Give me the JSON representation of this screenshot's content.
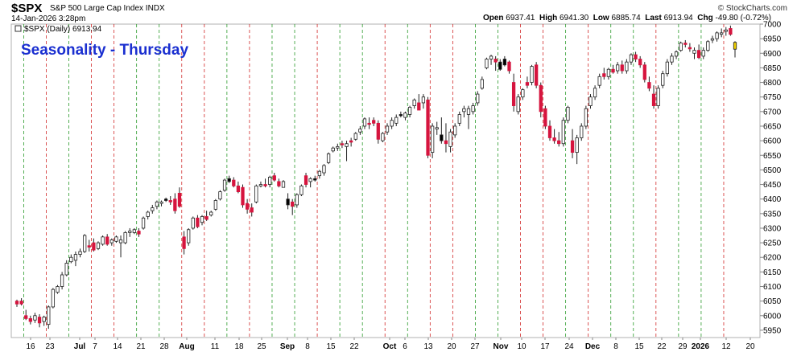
{
  "header": {
    "symbol": "$SPX",
    "name": "S&P 500 Large Cap Index  INDX",
    "date": "14-Jan-2026 3:28pm",
    "brand": "© StockCharts.com",
    "open_label": "Open",
    "open": "6937.41",
    "high_label": "High",
    "high": "6941.30",
    "low_label": "Low",
    "low": "6885.74",
    "last_label": "Last",
    "last": "6913.94",
    "chg_label": "Chg",
    "chg": "-49.80 (-0.72%)"
  },
  "legend": "$SPX (Daily) 6913.94",
  "annotation": "Seasonality - Thursday",
  "colors": {
    "down": "#d6143e",
    "up": "#ffffff",
    "neutral": "#000000",
    "latest": "#f0d000",
    "thursday_line": "#2a9a2a",
    "friday_line": "#d22a2a",
    "annotation": "#1a2fd0"
  },
  "chart_data": {
    "type": "candlestick",
    "title": "$SPX (Daily) 6913.94",
    "ylim": [
      5925,
      7000
    ],
    "yticks": [
      5950,
      6000,
      6050,
      6100,
      6150,
      6200,
      6250,
      6300,
      6350,
      6400,
      6450,
      6500,
      6550,
      6600,
      6650,
      6700,
      6750,
      6800,
      6850,
      6900,
      6950,
      7000
    ],
    "y_axis_position": "right",
    "grid": "vertical dashed lines on Thursdays (green) and Fridays (red)",
    "xticks": [
      "16",
      "23",
      "Jul",
      "7",
      "14",
      "21",
      "28",
      "Aug",
      "11",
      "18",
      "25",
      "Sep",
      "8",
      "15",
      "22",
      "Oct",
      "6",
      "13",
      "20",
      "27",
      "Nov",
      "10",
      "17",
      "24",
      "Dec",
      "8",
      "15",
      "22",
      "29",
      "2026",
      "12",
      "20"
    ],
    "candles": [
      [
        6040,
        6055,
        6030,
        6050,
        "d"
      ],
      [
        6050,
        6060,
        6035,
        6040,
        "d"
      ],
      [
        6000,
        6020,
        5985,
        5990,
        "d"
      ],
      [
        5990,
        6000,
        5970,
        5980,
        "d"
      ],
      [
        5985,
        6010,
        5975,
        6000,
        "u"
      ],
      [
        5995,
        6005,
        5960,
        5975,
        "d"
      ],
      [
        5980,
        6000,
        5965,
        5995,
        "u"
      ],
      [
        5970,
        6035,
        5955,
        6030,
        "u"
      ],
      [
        6030,
        6095,
        6025,
        6090,
        "u"
      ],
      [
        6080,
        6105,
        6075,
        6100,
        "u"
      ],
      [
        6100,
        6150,
        6090,
        6140,
        "u"
      ],
      [
        6140,
        6190,
        6135,
        6180,
        "u"
      ],
      [
        6185,
        6210,
        6180,
        6200,
        "u"
      ],
      [
        6190,
        6220,
        6170,
        6210,
        "u"
      ],
      [
        6210,
        6230,
        6200,
        6220,
        "u"
      ],
      [
        6220,
        6280,
        6215,
        6275,
        "u"
      ],
      [
        6240,
        6260,
        6220,
        6235,
        "d"
      ],
      [
        6250,
        6265,
        6220,
        6225,
        "d"
      ],
      [
        6230,
        6255,
        6225,
        6250,
        "u"
      ],
      [
        6245,
        6275,
        6240,
        6270,
        "u"
      ],
      [
        6270,
        6280,
        6240,
        6245,
        "d"
      ],
      [
        6250,
        6265,
        6240,
        6260,
        "u"
      ],
      [
        6255,
        6275,
        6250,
        6270,
        "u"
      ],
      [
        6260,
        6275,
        6200,
        6250,
        "u"
      ],
      [
        6250,
        6290,
        6245,
        6285,
        "u"
      ],
      [
        6290,
        6300,
        6270,
        6285,
        "u"
      ],
      [
        6285,
        6300,
        6280,
        6295,
        "u"
      ],
      [
        6290,
        6300,
        6270,
        6280,
        "d"
      ],
      [
        6300,
        6340,
        6295,
        6335,
        "u"
      ],
      [
        6340,
        6360,
        6330,
        6355,
        "u"
      ],
      [
        6360,
        6380,
        6350,
        6370,
        "u"
      ],
      [
        6375,
        6395,
        6365,
        6390,
        "u"
      ],
      [
        6385,
        6395,
        6375,
        6390,
        "u"
      ],
      [
        6395,
        6405,
        6390,
        6400,
        "n"
      ],
      [
        6395,
        6410,
        6380,
        6390,
        "d"
      ],
      [
        6400,
        6420,
        6350,
        6360,
        "d"
      ],
      [
        6420,
        6440,
        6370,
        6375,
        "d"
      ],
      [
        6270,
        6290,
        6210,
        6230,
        "d"
      ],
      [
        6250,
        6300,
        6240,
        6295,
        "u"
      ],
      [
        6300,
        6340,
        6295,
        6335,
        "u"
      ],
      [
        6335,
        6345,
        6300,
        6305,
        "d"
      ],
      [
        6320,
        6345,
        6310,
        6340,
        "u"
      ],
      [
        6340,
        6360,
        6325,
        6330,
        "d"
      ],
      [
        6345,
        6360,
        6340,
        6355,
        "u"
      ],
      [
        6365,
        6400,
        6360,
        6395,
        "u"
      ],
      [
        6400,
        6430,
        6395,
        6425,
        "u"
      ],
      [
        6430,
        6470,
        6425,
        6465,
        "u"
      ],
      [
        6470,
        6480,
        6455,
        6460,
        "n"
      ],
      [
        6465,
        6475,
        6440,
        6445,
        "d"
      ],
      [
        6445,
        6460,
        6420,
        6425,
        "d"
      ],
      [
        6440,
        6450,
        6370,
        6380,
        "d"
      ],
      [
        6385,
        6400,
        6350,
        6365,
        "d"
      ],
      [
        6370,
        6385,
        6340,
        6355,
        "d"
      ],
      [
        6390,
        6450,
        6385,
        6445,
        "u"
      ],
      [
        6445,
        6460,
        6440,
        6450,
        "u"
      ],
      [
        6450,
        6470,
        6440,
        6445,
        "d"
      ],
      [
        6450,
        6480,
        6440,
        6475,
        "u"
      ],
      [
        6480,
        6490,
        6460,
        6465,
        "d"
      ],
      [
        6460,
        6470,
        6440,
        6445,
        "d"
      ],
      [
        6440,
        6465,
        6440,
        6460,
        "u"
      ],
      [
        6400,
        6420,
        6365,
        6380,
        "n"
      ],
      [
        6390,
        6400,
        6345,
        6375,
        "d"
      ],
      [
        6380,
        6420,
        6370,
        6415,
        "u"
      ],
      [
        6415,
        6450,
        6410,
        6445,
        "u"
      ],
      [
        6450,
        6490,
        6440,
        6480,
        "d"
      ],
      [
        6460,
        6475,
        6440,
        6470,
        "u"
      ],
      [
        6470,
        6480,
        6460,
        6465,
        "n"
      ],
      [
        6480,
        6500,
        6470,
        6495,
        "u"
      ],
      [
        6490,
        6520,
        6480,
        6515,
        "u"
      ],
      [
        6525,
        6560,
        6520,
        6555,
        "u"
      ],
      [
        6565,
        6580,
        6560,
        6575,
        "u"
      ],
      [
        6575,
        6590,
        6565,
        6580,
        "u"
      ],
      [
        6590,
        6600,
        6575,
        6590,
        "d"
      ],
      [
        6580,
        6600,
        6530,
        6590,
        "u"
      ],
      [
        6595,
        6610,
        6580,
        6600,
        "d"
      ],
      [
        6605,
        6630,
        6600,
        6625,
        "u"
      ],
      [
        6630,
        6650,
        6620,
        6640,
        "u"
      ],
      [
        6650,
        6680,
        6640,
        6675,
        "u"
      ],
      [
        6660,
        6680,
        6640,
        6660,
        "d"
      ],
      [
        6670,
        6680,
        6650,
        6660,
        "d"
      ],
      [
        6660,
        6670,
        6590,
        6605,
        "d"
      ],
      [
        6600,
        6630,
        6595,
        6625,
        "u"
      ],
      [
        6630,
        6660,
        6620,
        6650,
        "u"
      ],
      [
        6650,
        6680,
        6640,
        6670,
        "u"
      ],
      [
        6660,
        6690,
        6650,
        6680,
        "u"
      ],
      [
        6690,
        6700,
        6680,
        6690,
        "n"
      ],
      [
        6680,
        6700,
        6670,
        6695,
        "u"
      ],
      [
        6690,
        6720,
        6680,
        6715,
        "u"
      ],
      [
        6720,
        6745,
        6710,
        6740,
        "u"
      ],
      [
        6730,
        6760,
        6710,
        6705,
        "d"
      ],
      [
        6730,
        6760,
        6710,
        6750,
        "u"
      ],
      [
        6740,
        6750,
        6540,
        6550,
        "d"
      ],
      [
        6560,
        6660,
        6540,
        6650,
        "u"
      ],
      [
        6640,
        6665,
        6620,
        6645,
        "u"
      ],
      [
        6620,
        6680,
        6590,
        6600,
        "n"
      ],
      [
        6600,
        6660,
        6560,
        6590,
        "d"
      ],
      [
        6580,
        6640,
        6560,
        6630,
        "u"
      ],
      [
        6620,
        6660,
        6610,
        6650,
        "u"
      ],
      [
        6660,
        6700,
        6650,
        6690,
        "u"
      ],
      [
        6700,
        6720,
        6680,
        6710,
        "u"
      ],
      [
        6690,
        6720,
        6640,
        6710,
        "u"
      ],
      [
        6700,
        6730,
        6690,
        6720,
        "u"
      ],
      [
        6730,
        6770,
        6720,
        6760,
        "u"
      ],
      [
        6780,
        6820,
        6775,
        6810,
        "u"
      ],
      [
        6850,
        6885,
        6845,
        6880,
        "u"
      ],
      [
        6880,
        6895,
        6860,
        6890,
        "u"
      ],
      [
        6880,
        6890,
        6840,
        6870,
        "d"
      ],
      [
        6870,
        6880,
        6840,
        6845,
        "n"
      ],
      [
        6880,
        6890,
        6855,
        6860,
        "n"
      ],
      [
        6870,
        6875,
        6830,
        6840,
        "d"
      ],
      [
        6800,
        6830,
        6700,
        6720,
        "d"
      ],
      [
        6700,
        6760,
        6690,
        6750,
        "u"
      ],
      [
        6750,
        6780,
        6740,
        6775,
        "u"
      ],
      [
        6790,
        6820,
        6780,
        6800,
        "d"
      ],
      [
        6800,
        6860,
        6790,
        6855,
        "u"
      ],
      [
        6860,
        6870,
        6780,
        6790,
        "d"
      ],
      [
        6790,
        6800,
        6680,
        6700,
        "d"
      ],
      [
        6710,
        6720,
        6640,
        6650,
        "d"
      ],
      [
        6650,
        6670,
        6600,
        6610,
        "d"
      ],
      [
        6610,
        6640,
        6590,
        6600,
        "d"
      ],
      [
        6600,
        6630,
        6580,
        6590,
        "d"
      ],
      [
        6590,
        6680,
        6580,
        6670,
        "u"
      ],
      [
        6670,
        6720,
        6660,
        6715,
        "u"
      ],
      [
        6600,
        6640,
        6540,
        6560,
        "d"
      ],
      [
        6560,
        6620,
        6520,
        6610,
        "u"
      ],
      [
        6610,
        6660,
        6600,
        6650,
        "u"
      ],
      [
        6650,
        6720,
        6640,
        6710,
        "u"
      ],
      [
        6720,
        6760,
        6710,
        6750,
        "u"
      ],
      [
        6750,
        6790,
        6740,
        6780,
        "u"
      ],
      [
        6790,
        6830,
        6780,
        6820,
        "u"
      ],
      [
        6830,
        6850,
        6810,
        6820,
        "d"
      ],
      [
        6820,
        6850,
        6810,
        6845,
        "u"
      ],
      [
        6845,
        6860,
        6830,
        6835,
        "d"
      ],
      [
        6840,
        6870,
        6830,
        6860,
        "u"
      ],
      [
        6860,
        6875,
        6830,
        6840,
        "d"
      ],
      [
        6840,
        6880,
        6830,
        6870,
        "u"
      ],
      [
        6870,
        6900,
        6860,
        6895,
        "u"
      ],
      [
        6895,
        6905,
        6870,
        6880,
        "d"
      ],
      [
        6880,
        6890,
        6850,
        6860,
        "d"
      ],
      [
        6860,
        6870,
        6800,
        6810,
        "d"
      ],
      [
        6800,
        6820,
        6770,
        6780,
        "d"
      ],
      [
        6760,
        6790,
        6710,
        6720,
        "d"
      ],
      [
        6720,
        6790,
        6710,
        6780,
        "u"
      ],
      [
        6790,
        6840,
        6780,
        6830,
        "u"
      ],
      [
        6830,
        6880,
        6820,
        6870,
        "u"
      ],
      [
        6870,
        6900,
        6860,
        6890,
        "u"
      ],
      [
        6890,
        6910,
        6880,
        6905,
        "u"
      ],
      [
        6910,
        6940,
        6905,
        6935,
        "u"
      ],
      [
        6935,
        6945,
        6920,
        6930,
        "d"
      ],
      [
        6920,
        6935,
        6905,
        6915,
        "d"
      ],
      [
        6900,
        6920,
        6880,
        6910,
        "u"
      ],
      [
        6910,
        6930,
        6880,
        6885,
        "d"
      ],
      [
        6890,
        6920,
        6880,
        6910,
        "u"
      ],
      [
        6910,
        6945,
        6905,
        6940,
        "u"
      ],
      [
        6945,
        6960,
        6935,
        6950,
        "u"
      ],
      [
        6950,
        6975,
        6940,
        6970,
        "u"
      ],
      [
        6970,
        6985,
        6955,
        6965,
        "u"
      ],
      [
        6975,
        6990,
        6960,
        6980,
        "u"
      ],
      [
        6985,
        6995,
        6960,
        6965,
        "d"
      ],
      [
        6937.41,
        6941.3,
        6885.74,
        6913.94,
        "y"
      ]
    ]
  }
}
